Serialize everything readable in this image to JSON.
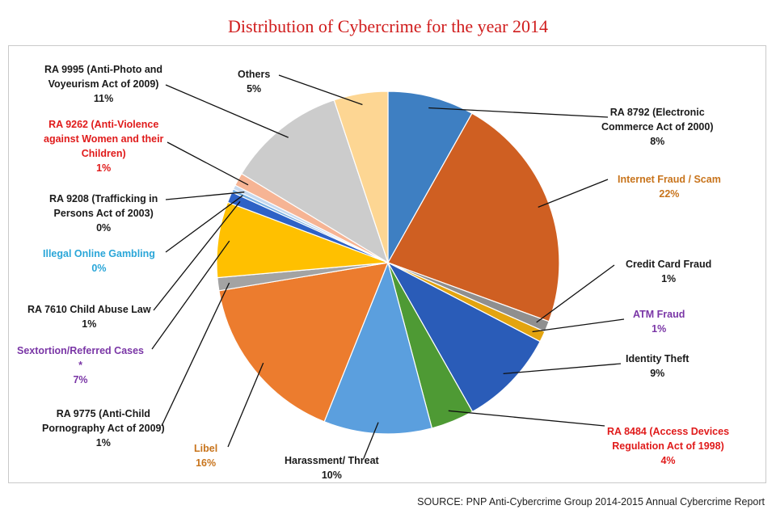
{
  "chart_data": {
    "type": "pie",
    "title": "Distribution of Cybercrime for the year 2014",
    "slices": [
      {
        "id": "ra8792",
        "lines": [
          "RA 8792 (Electronic",
          "Commerce Act of 2000)"
        ],
        "pct_label": "8%",
        "value": 8,
        "color": "#3e7fc2",
        "label_color": "#1a1a1a"
      },
      {
        "id": "internet-fraud",
        "lines": [
          "Internet Fraud / Scam"
        ],
        "pct_label": "22%",
        "value": 22,
        "color": "#cf5f22",
        "label_color": "#c8741c"
      },
      {
        "id": "credit-card",
        "lines": [
          "Credit Card Fraud"
        ],
        "pct_label": "1%",
        "value": 1,
        "color": "#8f8f8f",
        "label_color": "#1a1a1a"
      },
      {
        "id": "atm-fraud",
        "lines": [
          "ATM Fraud"
        ],
        "pct_label": "1%",
        "value": 1,
        "color": "#e3a40f",
        "label_color": "#7a36a6"
      },
      {
        "id": "identity-theft",
        "lines": [
          "Identity Theft"
        ],
        "pct_label": "9%",
        "value": 9,
        "color": "#2a5cb8",
        "label_color": "#1a1a1a"
      },
      {
        "id": "ra8484",
        "lines": [
          "RA 8484 (Access Devices",
          "Regulation Act of 1998)"
        ],
        "pct_label": "4%",
        "value": 4,
        "color": "#4e9a34",
        "label_color": "#e01b1b"
      },
      {
        "id": "harassment",
        "lines": [
          "Harassment/ Threat"
        ],
        "pct_label": "10%",
        "value": 10,
        "color": "#5b9fde",
        "label_color": "#1a1a1a"
      },
      {
        "id": "libel",
        "lines": [
          "Libel"
        ],
        "pct_label": "16%",
        "value": 16,
        "color": "#ec7c2e",
        "label_color": "#c8741c"
      },
      {
        "id": "ra9775",
        "lines": [
          "RA 9775 (Anti-Child",
          "Pornography Act of 2009)"
        ],
        "pct_label": "1%",
        "value": 1.2,
        "color": "#a3a3a3",
        "label_color": "#1a1a1a"
      },
      {
        "id": "sextortion",
        "lines": [
          "Sextortion/Referred Cases",
          "*"
        ],
        "pct_label": "7%",
        "value": 7,
        "color": "#ffc000",
        "label_color": "#7a36a6"
      },
      {
        "id": "ra7610",
        "lines": [
          "RA 7610 Child Abuse Law"
        ],
        "pct_label": "1%",
        "value": 1,
        "color": "#2e62c6",
        "label_color": "#1a1a1a"
      },
      {
        "id": "online-gambling",
        "lines": [
          "Illegal Online Gambling"
        ],
        "pct_label": "0%",
        "value": 0.3,
        "color": "#76aee2",
        "label_color": "#2aa6d8"
      },
      {
        "id": "ra9208",
        "lines": [
          "RA 9208 (Trafficking in",
          "Persons Act of 2003)"
        ],
        "pct_label": "0%",
        "value": 0.4,
        "color": "#c6d9ef",
        "label_color": "#1a1a1a"
      },
      {
        "id": "ra9262",
        "lines": [
          "RA 9262 (Anti-Violence",
          "against Women and  their",
          "Children)"
        ],
        "pct_label": "1%",
        "value": 1.2,
        "color": "#f6b494",
        "label_color": "#e01b1b"
      },
      {
        "id": "ra9995",
        "lines": [
          "RA 9995 (Anti-Photo and",
          "Voyeurism Act of 2009)"
        ],
        "pct_label": "11%",
        "value": 11,
        "color": "#cccccc",
        "label_color": "#1a1a1a"
      },
      {
        "id": "others",
        "lines": [
          "Others"
        ],
        "pct_label": "5%",
        "value": 5,
        "color": "#fdd693",
        "label_color": "#1a1a1a"
      }
    ]
  },
  "source_note": "SOURCE: PNP Anti-Cybercrime Group 2014-2015 Annual Cybercrime Report"
}
